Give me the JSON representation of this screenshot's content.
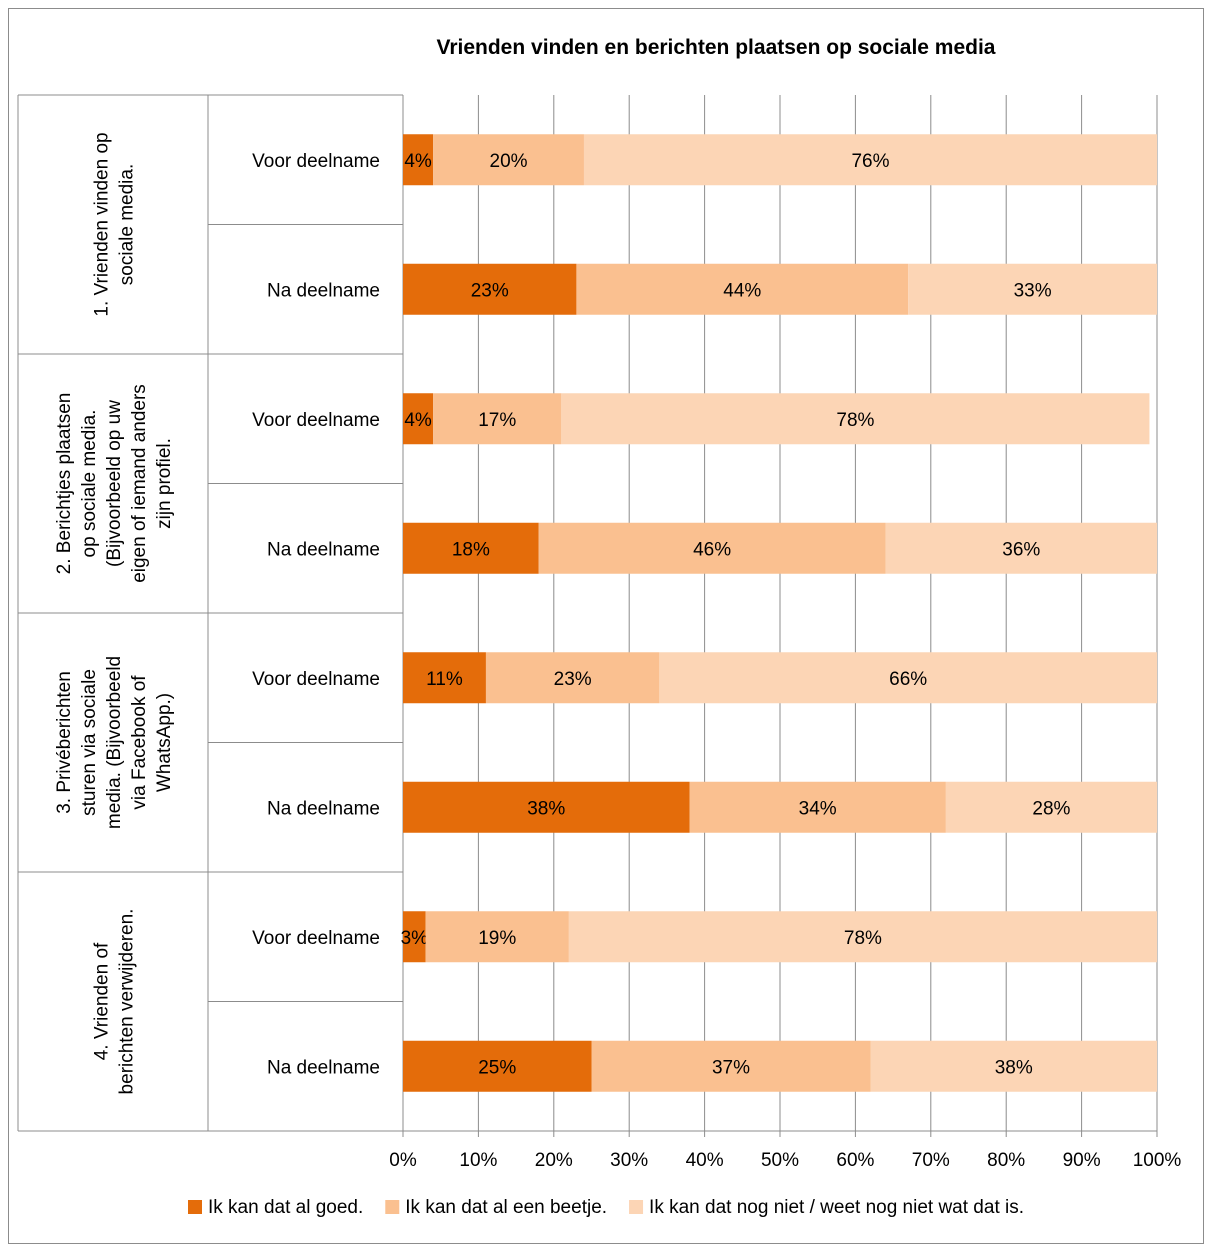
{
  "chart_data": {
    "type": "bar",
    "orientation": "horizontal",
    "stacked": "percent",
    "title": "Vrienden vinden en berichten plaatsen op sociale media",
    "groups": [
      {
        "label_lines": [
          "1. Vrienden vinden op",
          "sociale media."
        ],
        "categories": [
          "Voor deelname",
          "Na deelname"
        ]
      },
      {
        "label_lines": [
          "2. Berichtjes plaatsen",
          "op sociale media.",
          "(Bijvoorbeeld op uw",
          "eigen of iemand anders",
          "zijn profiel."
        ],
        "categories": [
          "Voor deelname",
          "Na deelname"
        ]
      },
      {
        "label_lines": [
          "3. Privéberichten",
          "sturen via sociale",
          "media. (Bijvoorbeeld",
          "via Facebook of",
          "WhatsApp.)"
        ],
        "categories": [
          "Voor deelname",
          "Na deelname"
        ]
      },
      {
        "label_lines": [
          "4. Vrienden of",
          "berichten verwijderen."
        ],
        "categories": [
          "Voor deelname",
          "Na deelname"
        ]
      }
    ],
    "series": [
      {
        "name": "Ik kan dat al goed.",
        "color": "#e46c0a",
        "values": [
          4,
          23,
          4,
          18,
          11,
          38,
          3,
          25
        ],
        "labels": [
          "4%",
          "23%",
          "4%",
          "18%",
          "11%",
          "38%",
          "3%",
          "25%"
        ]
      },
      {
        "name": "Ik kan dat al een beetje.",
        "color": "#fac090",
        "values": [
          20,
          44,
          17,
          46,
          23,
          34,
          19,
          37
        ],
        "labels": [
          "20%",
          "44%",
          "17%",
          "46%",
          "23%",
          "34%",
          "19%",
          "37%"
        ]
      },
      {
        "name": "Ik kan dat nog niet / weet nog niet wat dat is.",
        "color": "#fcd5b5",
        "values": [
          76,
          33,
          78,
          36,
          66,
          28,
          78,
          38
        ],
        "labels": [
          "76%",
          "33%",
          "78%",
          "36%",
          "66%",
          "28%",
          "78%",
          "38%"
        ]
      }
    ],
    "x_ticks": [
      "0%",
      "10%",
      "20%",
      "30%",
      "40%",
      "50%",
      "60%",
      "70%",
      "80%",
      "90%",
      "100%"
    ],
    "xlim": [
      0,
      100
    ],
    "grid": "vertical",
    "legend": "bottom"
  }
}
